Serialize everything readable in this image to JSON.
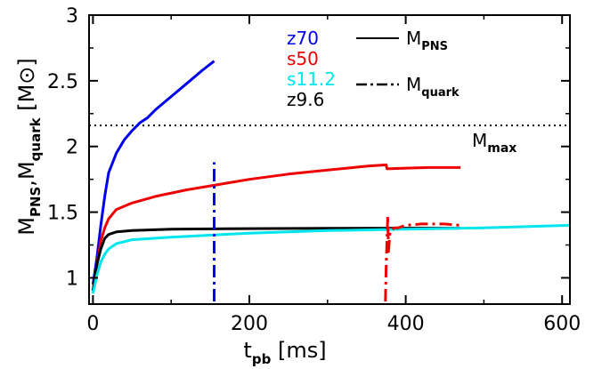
{
  "chart_data": {
    "type": "line",
    "xlim": [
      -5,
      610
    ],
    "ylim": [
      0.8,
      3.0
    ],
    "x_ticks": [
      "0",
      "200",
      "400",
      "600"
    ],
    "x_tick_values": [
      0,
      200,
      400,
      600
    ],
    "y_ticks": [
      "1",
      "1.5",
      "2",
      "2.5",
      "3"
    ],
    "y_tick_values": [
      1,
      1.5,
      2,
      2.5,
      3
    ],
    "xlabel": {
      "main": "t",
      "sub": "pb",
      "unit": " [ms]"
    },
    "ylabel": {
      "m1": "M",
      "s1": "PNS",
      "sep": ",",
      "m2": "M",
      "s2": "quark",
      "unit_open": " [M",
      "unit_close": "]"
    },
    "grid": false,
    "legend_models": [
      {
        "label": "z70",
        "color": "#0000ee"
      },
      {
        "label": "s50",
        "color": "#ee0000"
      },
      {
        "label": "s11.2",
        "color": "#00e5ee"
      },
      {
        "label": "z9.6",
        "color": "#000000"
      }
    ],
    "legend_styles": [
      {
        "main": "M",
        "sub": "PNS",
        "style": "solid"
      },
      {
        "main": "M",
        "sub": "quark",
        "style": "dashdot"
      }
    ],
    "mmax": {
      "main": "M",
      "sub": "max",
      "value": 2.16,
      "color": "#000000"
    },
    "series": [
      {
        "model": "z70",
        "kind": "M_PNS",
        "color": "#0000ee",
        "style": "solid",
        "x": [
          0,
          5,
          10,
          15,
          20,
          30,
          40,
          50,
          60,
          70,
          80,
          100,
          120,
          140,
          155
        ],
        "y": [
          0.95,
          1.15,
          1.4,
          1.62,
          1.8,
          1.95,
          2.05,
          2.12,
          2.18,
          2.22,
          2.28,
          2.38,
          2.48,
          2.58,
          2.65
        ]
      },
      {
        "model": "s50",
        "kind": "M_PNS",
        "color": "#ee0000",
        "style": "solid",
        "x": [
          0,
          5,
          10,
          15,
          20,
          30,
          50,
          80,
          120,
          160,
          200,
          250,
          300,
          350,
          375,
          376,
          380,
          400,
          430,
          470
        ],
        "y": [
          0.9,
          1.1,
          1.28,
          1.38,
          1.45,
          1.52,
          1.57,
          1.62,
          1.67,
          1.71,
          1.75,
          1.79,
          1.82,
          1.85,
          1.86,
          1.83,
          1.83,
          1.835,
          1.84,
          1.84
        ]
      },
      {
        "model": "z9.6",
        "kind": "M_PNS",
        "color": "#000000",
        "style": "solid",
        "x": [
          0,
          5,
          10,
          15,
          20,
          30,
          50,
          100,
          200,
          300,
          400,
          470
        ],
        "y": [
          0.9,
          1.1,
          1.22,
          1.3,
          1.33,
          1.35,
          1.36,
          1.37,
          1.375,
          1.377,
          1.378,
          1.378
        ]
      },
      {
        "model": "s11.2",
        "kind": "M_PNS",
        "color": "#00e5ee",
        "style": "solid",
        "x": [
          0,
          5,
          10,
          15,
          20,
          30,
          50,
          100,
          200,
          300,
          400,
          500,
          610
        ],
        "y": [
          0.88,
          1.02,
          1.12,
          1.18,
          1.22,
          1.26,
          1.29,
          1.31,
          1.34,
          1.36,
          1.37,
          1.38,
          1.4
        ]
      },
      {
        "model": "z70",
        "kind": "M_quark",
        "color": "#0000ee",
        "style": "dashdot",
        "x": [
          155,
          155
        ],
        "y": [
          0.82,
          1.88
        ]
      },
      {
        "model": "s50",
        "kind": "M_quark",
        "color": "#ee0000",
        "style": "dashdot",
        "x": [
          374,
          375,
          377,
          378,
          380,
          385,
          390,
          400,
          420,
          450,
          470
        ],
        "y": [
          0.82,
          1.1,
          1.47,
          1.2,
          1.35,
          1.38,
          1.38,
          1.4,
          1.41,
          1.41,
          1.4
        ]
      }
    ]
  }
}
